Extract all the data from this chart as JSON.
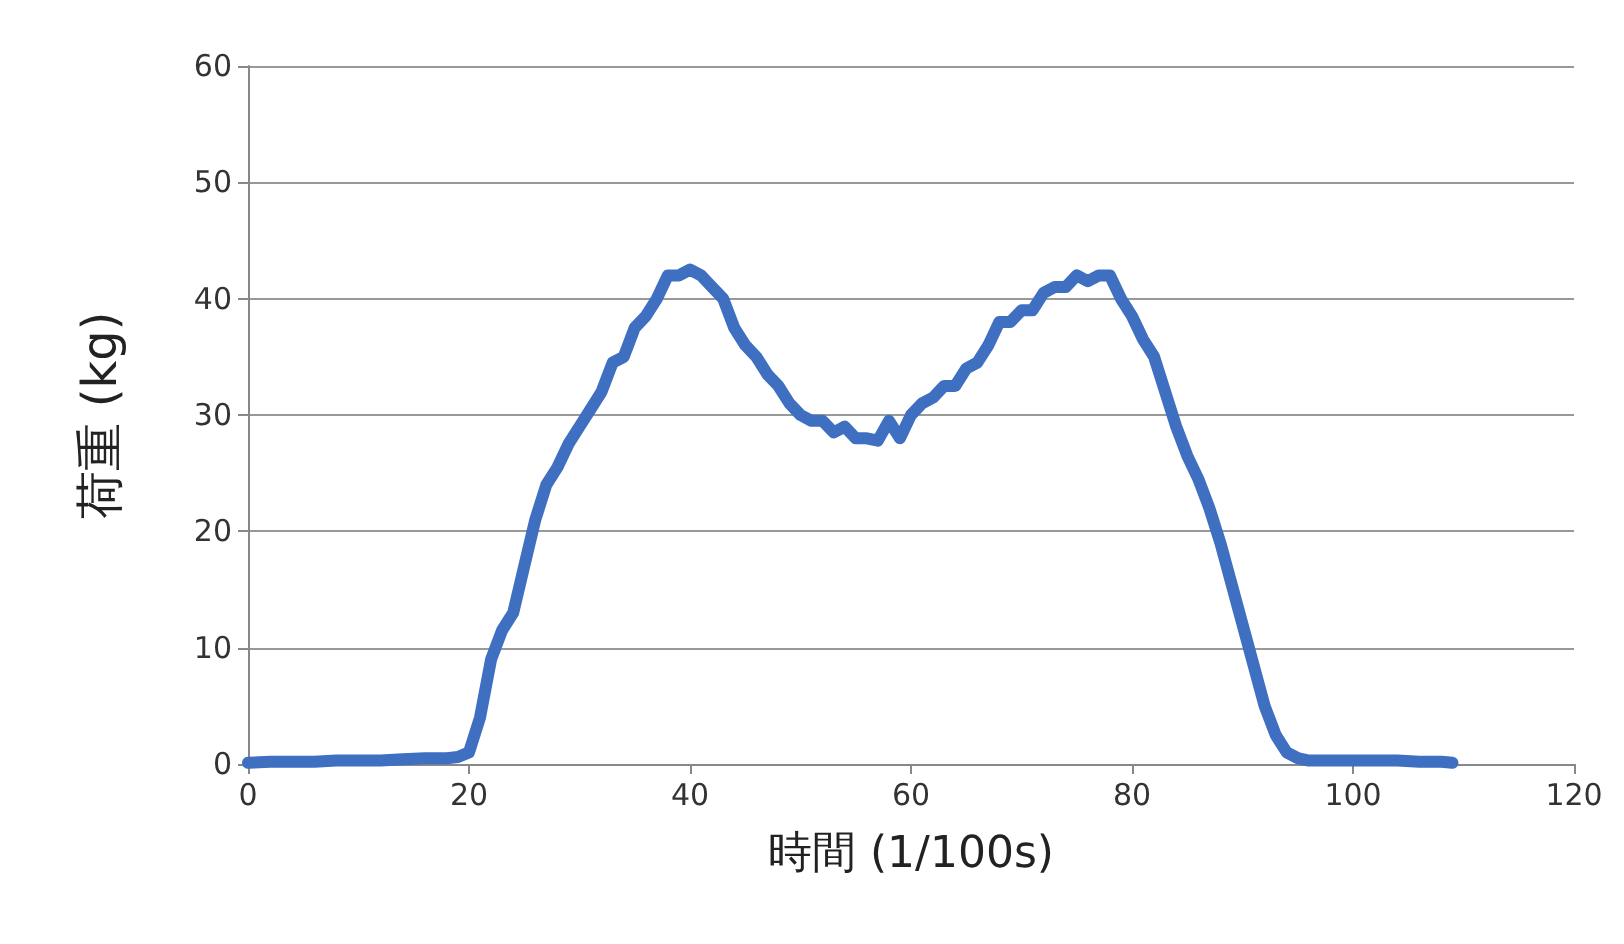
{
  "chart_data": {
    "type": "line",
    "xlabel": "時間 (1/100s)",
    "ylabel": "荷重 (kg)",
    "xlim": [
      0,
      120
    ],
    "xticks": [
      0,
      20,
      40,
      60,
      80,
      100,
      120
    ],
    "ylim": [
      0,
      60
    ],
    "yticks": [
      0,
      10,
      20,
      30,
      40,
      50,
      60
    ],
    "grid": "y",
    "marker": "none",
    "line_style": "solid",
    "series": [
      {
        "color": "#3f6fc0",
        "x": [
          0,
          2,
          4,
          6,
          8,
          10,
          12,
          14,
          16,
          18,
          19,
          20,
          21,
          22,
          23,
          24,
          25,
          26,
          27,
          28,
          29,
          30,
          31,
          32,
          33,
          34,
          35,
          36,
          37,
          38,
          39,
          40,
          41,
          42,
          43,
          44,
          45,
          46,
          47,
          48,
          49,
          50,
          51,
          52,
          53,
          54,
          55,
          56,
          57,
          58,
          59,
          60,
          61,
          62,
          63,
          64,
          65,
          66,
          67,
          68,
          69,
          70,
          71,
          72,
          73,
          74,
          75,
          76,
          77,
          78,
          79,
          80,
          81,
          82,
          83,
          84,
          85,
          86,
          87,
          88,
          89,
          90,
          91,
          92,
          93,
          94,
          95,
          96,
          98,
          100,
          102,
          104,
          106,
          108,
          109
        ],
        "values": [
          0.1,
          0.2,
          0.2,
          0.2,
          0.3,
          0.3,
          0.3,
          0.4,
          0.5,
          0.5,
          0.6,
          1,
          4,
          9,
          11.5,
          13,
          17,
          21,
          24,
          25.5,
          27.5,
          29,
          30.5,
          32,
          34.5,
          35,
          37.5,
          38.5,
          40,
          42,
          42,
          42.5,
          42,
          41,
          40,
          37.5,
          36,
          35,
          33.5,
          32.5,
          31,
          30,
          29.5,
          29.5,
          28.5,
          29,
          28,
          28,
          27.8,
          29.5,
          28,
          30,
          31,
          31.5,
          32.5,
          32.5,
          34,
          34.5,
          36,
          38,
          38,
          39,
          39,
          40.5,
          41,
          41,
          42,
          41.5,
          42,
          42,
          40,
          38.5,
          36.5,
          35,
          32,
          29,
          26.5,
          24.5,
          22,
          19,
          15.5,
          12,
          8.5,
          5,
          2.5,
          1,
          0.5,
          0.3,
          0.3,
          0.3,
          0.3,
          0.3,
          0.2,
          0.2,
          0.1
        ]
      }
    ]
  }
}
